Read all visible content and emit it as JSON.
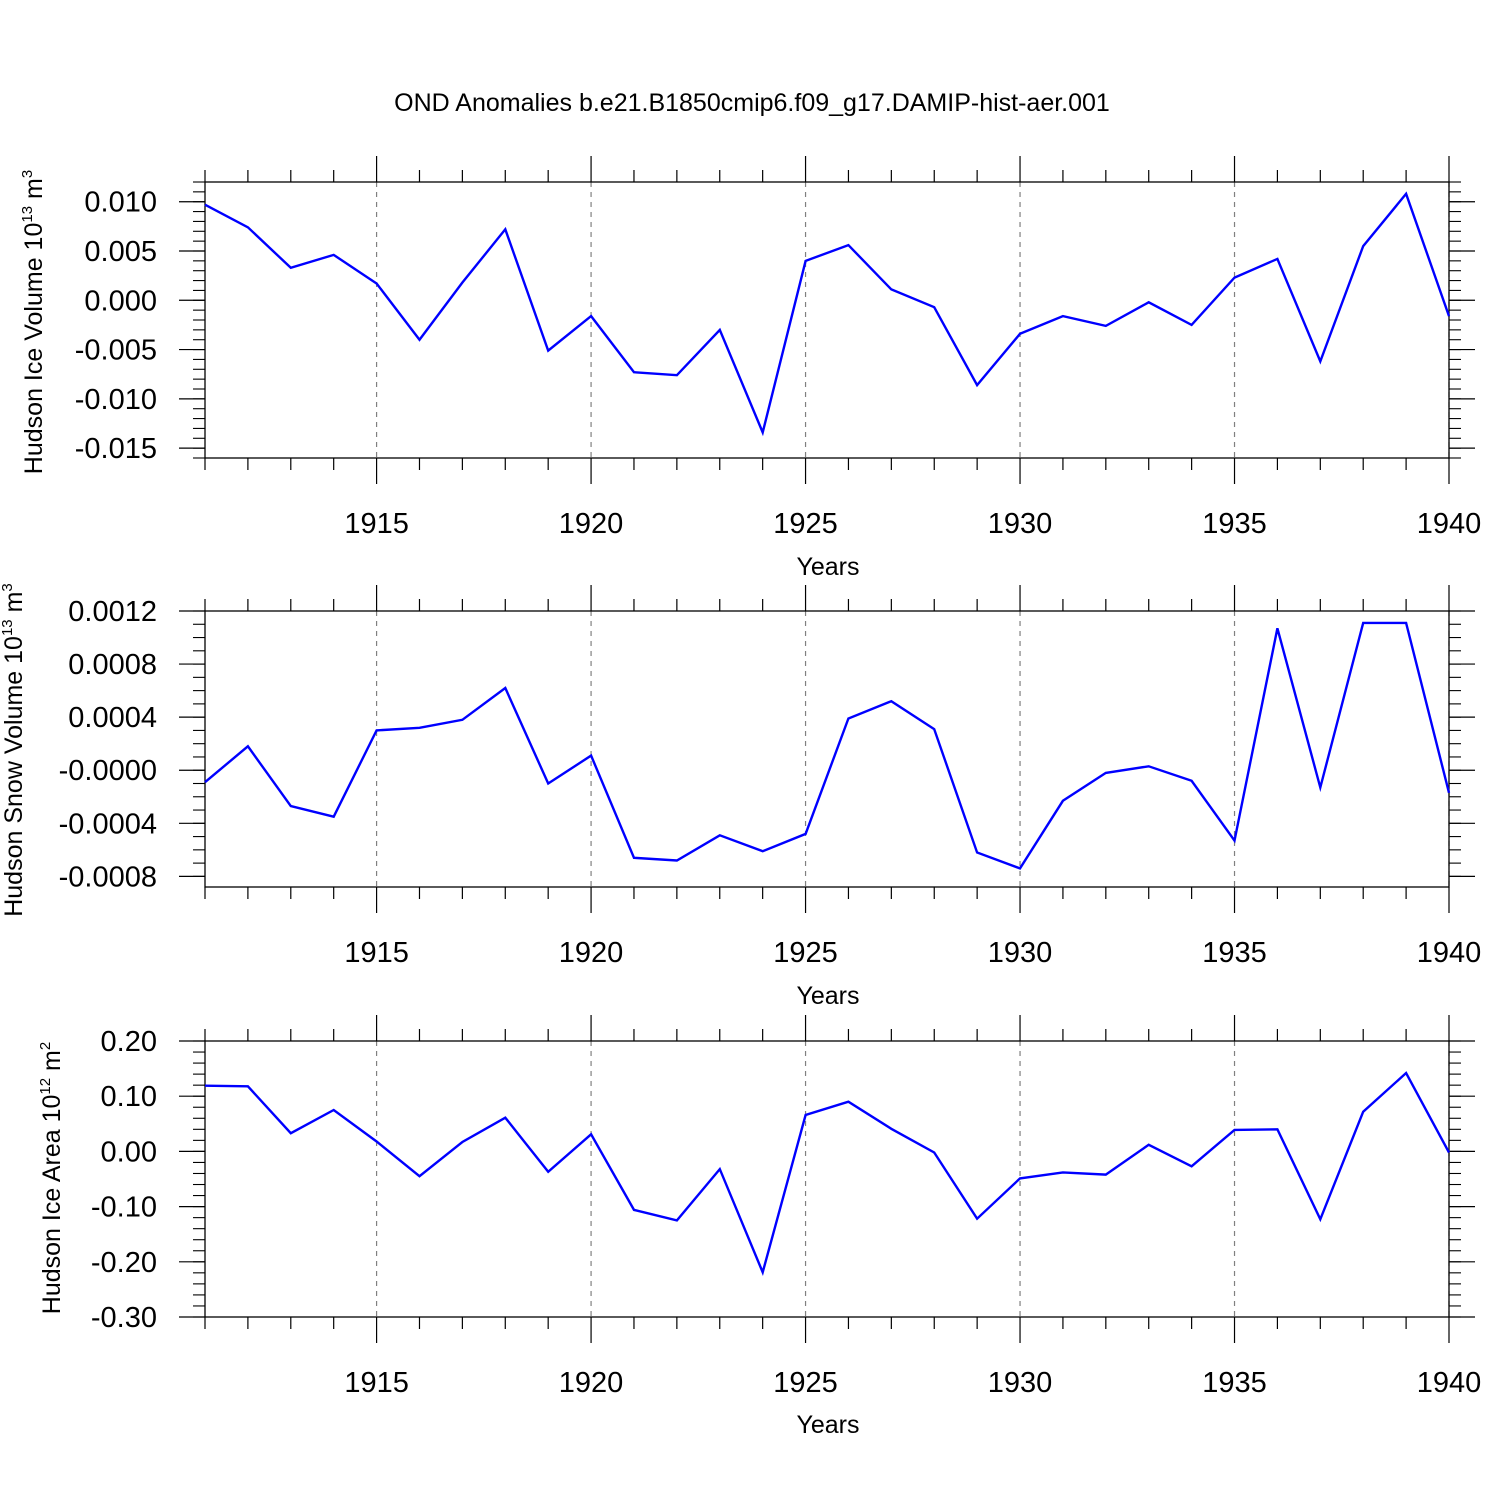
{
  "title": "OND Anomalies b.e21.B1850cmip6.f09_g17.DAMIP-hist-aer.001",
  "colors": {
    "line": "#0000ff",
    "axis": "#000000",
    "grid": "#808080"
  },
  "chart_data": [
    {
      "type": "line",
      "ylabel": "Hudson Ice Volume 10",
      "ylabel_exp": "13",
      "ylabel_unit": " m",
      "ylabel_unit_exp": "3",
      "xlabel": "Years",
      "xlim": [
        1911,
        1940
      ],
      "ylim": [
        -0.016,
        0.012
      ],
      "yticks": [
        0.01,
        0.005,
        0.0,
        -0.005,
        -0.01,
        -0.015
      ],
      "ytick_labels": [
        "0.010",
        "0.005",
        "0.000",
        "-0.005",
        "-0.010",
        "-0.015"
      ],
      "yminor_step": 0.001,
      "xticks": [
        1915,
        1920,
        1925,
        1930,
        1935,
        1940
      ],
      "xtick_labels": [
        "1915",
        "1920",
        "1925",
        "1930",
        "1935",
        "1940"
      ],
      "grid": "vertical dashed at major x ticks",
      "x": [
        1911,
        1912,
        1913,
        1914,
        1915,
        1916,
        1917,
        1918,
        1919,
        1920,
        1921,
        1922,
        1923,
        1924,
        1925,
        1926,
        1927,
        1928,
        1929,
        1930,
        1931,
        1932,
        1933,
        1934,
        1935,
        1936,
        1937,
        1938,
        1939,
        1940
      ],
      "series": [
        {
          "values": [
            0.0097,
            0.0074,
            0.0033,
            0.0046,
            0.0017,
            -0.004,
            0.0018,
            0.0072,
            -0.0051,
            -0.0016,
            -0.0073,
            -0.0076,
            -0.003,
            -0.0134,
            0.004,
            0.0056,
            0.0011,
            -0.0007,
            -0.0086,
            -0.0034,
            -0.0016,
            -0.0026,
            -0.0002,
            -0.0025,
            0.0023,
            0.0042,
            -0.0062,
            0.0055,
            0.0108,
            -0.0016
          ]
        }
      ]
    },
    {
      "type": "line",
      "ylabel": "Hudson Snow Volume 10",
      "ylabel_exp": "13",
      "ylabel_unit": " m",
      "ylabel_unit_exp": "3",
      "xlabel": "Years",
      "xlim": [
        1911,
        1940
      ],
      "ylim": [
        -0.00088,
        0.0012
      ],
      "yticks": [
        0.0012,
        0.0008,
        0.0004,
        0.0,
        -0.0004,
        -0.0008
      ],
      "ytick_labels": [
        "0.0012",
        "0.0008",
        "0.0004",
        "-0.0000",
        "-0.0004",
        "-0.0008"
      ],
      "yminor_step": 0.0001,
      "xticks": [
        1915,
        1920,
        1925,
        1930,
        1935,
        1940
      ],
      "xtick_labels": [
        "1915",
        "1920",
        "1925",
        "1930",
        "1935",
        "1940"
      ],
      "grid": "vertical dashed at major x ticks",
      "x": [
        1911,
        1912,
        1913,
        1914,
        1915,
        1916,
        1917,
        1918,
        1919,
        1920,
        1921,
        1922,
        1923,
        1924,
        1925,
        1926,
        1927,
        1928,
        1929,
        1930,
        1931,
        1932,
        1933,
        1934,
        1935,
        1936,
        1937,
        1938,
        1939,
        1940
      ],
      "series": [
        {
          "values": [
            -9e-05,
            0.00018,
            -0.00027,
            -0.00035,
            0.0003,
            0.00032,
            0.00038,
            0.00062,
            -0.0001,
            0.00011,
            -0.00066,
            -0.00068,
            -0.00049,
            -0.00061,
            -0.00048,
            0.00039,
            0.00052,
            0.00031,
            -0.00062,
            -0.00074,
            -0.00023,
            -2e-05,
            3e-05,
            -8e-05,
            -0.00053,
            0.00107,
            -0.00013,
            0.00111,
            0.00111,
            -0.00017
          ]
        }
      ]
    },
    {
      "type": "line",
      "ylabel": "Hudson Ice Area 10",
      "ylabel_exp": "12",
      "ylabel_unit": " m",
      "ylabel_unit_exp": "2",
      "xlabel": "Years",
      "xlim": [
        1911,
        1940
      ],
      "ylim": [
        -0.3,
        0.2
      ],
      "yticks": [
        0.2,
        0.1,
        0.0,
        -0.1,
        -0.2,
        -0.3
      ],
      "ytick_labels": [
        "0.20",
        "0.10",
        "0.00",
        "-0.10",
        "-0.20",
        "-0.30"
      ],
      "yminor_step": 0.02,
      "xticks": [
        1915,
        1920,
        1925,
        1930,
        1935,
        1940
      ],
      "xtick_labels": [
        "1915",
        "1920",
        "1925",
        "1930",
        "1935",
        "1940"
      ],
      "grid": "vertical dashed at major x ticks",
      "x": [
        1911,
        1912,
        1913,
        1914,
        1915,
        1916,
        1917,
        1918,
        1919,
        1920,
        1921,
        1922,
        1923,
        1924,
        1925,
        1926,
        1927,
        1928,
        1929,
        1930,
        1931,
        1932,
        1933,
        1934,
        1935,
        1936,
        1937,
        1938,
        1939,
        1940
      ],
      "series": [
        {
          "values": [
            0.119,
            0.118,
            0.033,
            0.075,
            0.018,
            -0.045,
            0.017,
            0.061,
            -0.037,
            0.031,
            -0.106,
            -0.125,
            -0.032,
            -0.219,
            0.066,
            0.09,
            0.041,
            -0.002,
            -0.122,
            -0.049,
            -0.038,
            -0.042,
            0.012,
            -0.027,
            0.039,
            0.04,
            -0.123,
            0.072,
            0.142,
            -0.002
          ]
        }
      ]
    }
  ]
}
